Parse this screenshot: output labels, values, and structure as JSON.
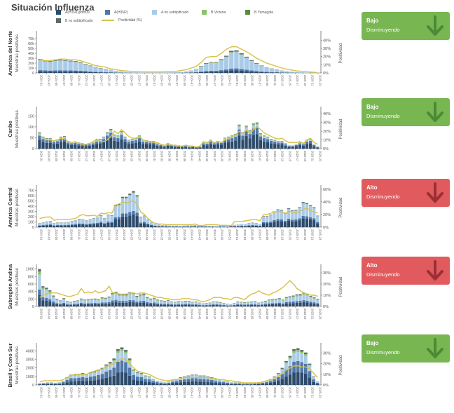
{
  "page": {
    "title": "Situación Influenza"
  },
  "legend": [
    {
      "label": "A(H1N1)pdm09",
      "color": "#2d4a6b",
      "type": "box"
    },
    {
      "label": "A(H3N2)",
      "color": "#4f78a8",
      "type": "box"
    },
    {
      "label": "A no subtipificado",
      "color": "#aacbe8",
      "type": "box"
    },
    {
      "label": "B Victoria",
      "color": "#8ec26a",
      "type": "box"
    },
    {
      "label": "B Yamagata",
      "color": "#5a8a3e",
      "type": "box"
    },
    {
      "label": "B no subtipificado",
      "color": "#5b6b68",
      "type": "box"
    },
    {
      "label": "Positividad (%)",
      "color": "#d8c04a",
      "type": "line"
    }
  ],
  "status_cards": [
    {
      "level": "Bajo",
      "trend": "Disminuyendo",
      "color": "#78b651",
      "arrow_color": "#4d8a36"
    },
    {
      "level": "Bajo",
      "trend": "Disminuyendo",
      "color": "#78b651",
      "arrow_color": "#4d8a36"
    },
    {
      "level": "Alto",
      "trend": "Disminuyendo",
      "color": "#e05a5e",
      "arrow_color": "#9b3034"
    },
    {
      "level": "Alto",
      "trend": "Disminuyendo",
      "color": "#e05a5e",
      "arrow_color": "#9b3034"
    },
    {
      "level": "Bajo",
      "trend": "Disminuyendo",
      "color": "#78b651",
      "arrow_color": "#4d8a36"
    }
  ],
  "chart_data": [
    {
      "type": "bar",
      "region": "América del Norte",
      "ylabel": "Muestras positivas",
      "y2label": "Positividad",
      "yticks": [
        "0",
        "10k",
        "20k",
        "30k",
        "40k",
        "50k",
        "60k",
        "70k"
      ],
      "ylim": [
        0,
        80000
      ],
      "y2ticks": [
        "0%",
        "10%",
        "20%",
        "30%",
        "40%"
      ],
      "y2lim": [
        0,
        48
      ],
      "xticks": [
        "2024-01",
        "2024-03",
        "2024-05",
        "2024-07",
        "2024-09",
        "2024-11",
        "2024-13",
        "2024-15",
        "2024-17",
        "2024-19",
        "2024-21",
        "2024-23",
        "2024-25",
        "2024-27",
        "2024-29",
        "2024-31",
        "2024-33",
        "2024-35",
        "2024-37",
        "2024-39",
        "2024-41",
        "2024-43",
        "2024-45",
        "2024-47",
        "2024-49",
        "2024-51",
        "2025-01",
        "2025-03",
        "2025-05",
        "2025-07",
        "2025-09",
        "2025-11",
        "2025-13",
        "2025-15",
        "2025-17",
        "2025-19",
        "2025-21",
        "2025-23"
      ],
      "totals": [
        28000,
        25000,
        24000,
        26000,
        27000,
        26000,
        25000,
        24000,
        22000,
        18000,
        15000,
        12000,
        10000,
        8000,
        6000,
        4000,
        3000,
        2000,
        1500,
        1200,
        1000,
        900,
        800,
        800,
        900,
        1000,
        1200,
        1500,
        2000,
        3000,
        5000,
        8000,
        14000,
        20000,
        22000,
        22000,
        28000,
        35000,
        45000,
        46000,
        40000,
        33000,
        26000,
        20000,
        15000,
        11000,
        9000,
        7000,
        5000,
        3500,
        2500,
        1800,
        1200,
        900,
        600,
        400
      ],
      "positivity": [
        16,
        15,
        15,
        16,
        17,
        17,
        16,
        16,
        15,
        13,
        11,
        9,
        8,
        7,
        5,
        4,
        3,
        2.5,
        2,
        1.8,
        1.5,
        1.3,
        1.2,
        1.2,
        1.3,
        1.5,
        1.8,
        2,
        3,
        4,
        6,
        8,
        13,
        19,
        20,
        20,
        24,
        29,
        32,
        32,
        29,
        26,
        22,
        18,
        15,
        12,
        10,
        8,
        6,
        4.5,
        3.5,
        2.5,
        2,
        1.5,
        1,
        0.5
      ],
      "ymax_bar": 80000,
      "ymax_pos": 48
    },
    {
      "type": "bar",
      "region": "Caribe",
      "ylabel": "Muestras positivas",
      "y2label": "Positividad",
      "yticks": [
        "0",
        "50",
        "100",
        "150"
      ],
      "ylim": [
        0,
        180
      ],
      "y2ticks": [
        "0%",
        "10%",
        "20%",
        "30%",
        "40%"
      ],
      "y2lim": [
        0,
        45
      ],
      "xticks": [
        "2024-01",
        "2024-03",
        "2024-05",
        "2024-07",
        "2024-09",
        "2024-11",
        "2024-13",
        "2024-15",
        "2024-17",
        "2024-19",
        "2024-21",
        "2024-23",
        "2024-25",
        "2024-27",
        "2024-29",
        "2024-31",
        "2024-33",
        "2024-35",
        "2024-37",
        "2024-39",
        "2024-41",
        "2024-43",
        "2024-45",
        "2024-47",
        "2024-49",
        "2024-51",
        "2025-01",
        "2025-03",
        "2025-05",
        "2025-07",
        "2025-09",
        "2025-11",
        "2025-13",
        "2025-15",
        "2025-17",
        "2025-19",
        "2025-21",
        "2025-23"
      ],
      "totals": [
        75,
        55,
        48,
        48,
        38,
        42,
        55,
        58,
        35,
        30,
        32,
        28,
        25,
        22,
        25,
        30,
        40,
        45,
        55,
        75,
        90,
        65,
        60,
        80,
        55,
        40,
        45,
        48,
        60,
        40,
        38,
        35,
        35,
        25,
        20,
        15,
        25,
        20,
        18,
        15,
        12,
        15,
        10,
        12,
        8,
        10,
        30,
        28,
        40,
        30,
        35,
        32,
        50,
        55,
        60,
        68,
        110,
        75,
        105,
        85,
        115,
        120,
        70,
        60,
        55,
        45,
        40,
        35,
        35,
        25,
        15,
        15,
        20,
        30,
        25,
        40,
        45,
        20,
        10
      ],
      "positivity": [
        16,
        12,
        10,
        10,
        9,
        10,
        12,
        11,
        8,
        7,
        8,
        6,
        5,
        5,
        6,
        8,
        11,
        8,
        8,
        10,
        14,
        20,
        17,
        22,
        18,
        14,
        12,
        12,
        14,
        10,
        9,
        8,
        7,
        7,
        5,
        4,
        5,
        4,
        3,
        3,
        3,
        4,
        3,
        3,
        2,
        3,
        8,
        7,
        9,
        7,
        8,
        7,
        10,
        11,
        13,
        16,
        20,
        18,
        21,
        17,
        22,
        25,
        22,
        18,
        16,
        14,
        12,
        11,
        12,
        9,
        7,
        7,
        7,
        8,
        6,
        10,
        12,
        7,
        5
      ],
      "ymax_bar": 180,
      "ymax_pos": 45
    },
    {
      "type": "bar",
      "region": "América Central",
      "ylabel": "Muestras positivas",
      "y2label": "Positividad",
      "yticks": [
        "0",
        "100",
        "200",
        "300",
        "400",
        "500",
        "600",
        "700"
      ],
      "ylim": [
        0,
        750
      ],
      "y2ticks": [
        "0%",
        "20%",
        "40%",
        "60%"
      ],
      "y2lim": [
        0,
        62
      ],
      "xticks": [
        "2024-01",
        "2024-03",
        "2024-05",
        "2024-07",
        "2024-09",
        "2024-11",
        "2024-13",
        "2024-15",
        "2024-17",
        "2024-19",
        "2024-21",
        "2024-23",
        "2024-25",
        "2024-27",
        "2024-29",
        "2024-31",
        "2024-33",
        "2024-35",
        "2024-37",
        "2024-39",
        "2024-41",
        "2024-43",
        "2024-45",
        "2024-47",
        "2024-49",
        "2024-51",
        "2025-01",
        "2025-03",
        "2025-05",
        "2025-07",
        "2025-09",
        "2025-11",
        "2025-13",
        "2025-15",
        "2025-17",
        "2025-19",
        "2025-21",
        "2025-23"
      ],
      "totals": [
        80,
        90,
        110,
        120,
        80,
        90,
        90,
        90,
        100,
        120,
        130,
        160,
        150,
        130,
        150,
        170,
        180,
        230,
        170,
        240,
        230,
        420,
        440,
        580,
        580,
        640,
        690,
        610,
        200,
        220,
        150,
        100,
        60,
        50,
        40,
        40,
        30,
        30,
        30,
        25,
        30,
        35,
        35,
        40,
        30,
        35,
        30,
        25,
        25,
        20,
        30,
        25,
        20,
        40,
        45,
        50,
        60,
        55,
        80,
        90,
        80,
        60,
        210,
        210,
        240,
        300,
        340,
        330,
        270,
        360,
        320,
        330,
        380,
        480,
        460,
        420,
        380,
        220
      ],
      "positivity": [
        14,
        15,
        16,
        16,
        11,
        12,
        12,
        12,
        12,
        13,
        14,
        18,
        20,
        18,
        18,
        19,
        17,
        22,
        21,
        23,
        22,
        35,
        37,
        40,
        38,
        40,
        42,
        36,
        24,
        20,
        14,
        9,
        6,
        5,
        5,
        4,
        4,
        4,
        4,
        4,
        4,
        4,
        4,
        5,
        3,
        2,
        4,
        4,
        4,
        4,
        3,
        3,
        3,
        2,
        9,
        9,
        9,
        10,
        11,
        12,
        12,
        10,
        20,
        20,
        22,
        24,
        25,
        24,
        22,
        25,
        24,
        22,
        25,
        28,
        30,
        26,
        24,
        22
      ],
      "ymax_bar": 750,
      "ymax_pos": 62
    },
    {
      "type": "bar",
      "region": "Subregión Andina",
      "ylabel": "Muestras positivas",
      "y2label": "Positividad",
      "yticks": [
        "0",
        "200",
        "400",
        "600",
        "800",
        "1000"
      ],
      "ylim": [
        0,
        1050
      ],
      "y2ticks": [
        "0%",
        "10%",
        "20%",
        "30%"
      ],
      "y2lim": [
        0,
        35
      ],
      "xticks": [
        "2024-01",
        "2024-03",
        "2024-05",
        "2024-07",
        "2024-09",
        "2024-11",
        "2024-13",
        "2024-15",
        "2024-17",
        "2024-19",
        "2024-21",
        "2024-23",
        "2024-25",
        "2024-27",
        "2024-29",
        "2024-31",
        "2024-33",
        "2024-35",
        "2024-37",
        "2024-39",
        "2024-41",
        "2024-43",
        "2024-45",
        "2024-47",
        "2024-49",
        "2024-51",
        "2025-01",
        "2025-03",
        "2025-05",
        "2025-07",
        "2025-09",
        "2025-11",
        "2025-13",
        "2025-15",
        "2025-17",
        "2025-19",
        "2025-21",
        "2025-23"
      ],
      "totals": [
        1000,
        540,
        500,
        430,
        290,
        200,
        160,
        220,
        140,
        120,
        150,
        160,
        210,
        180,
        190,
        200,
        210,
        190,
        240,
        230,
        260,
        360,
        390,
        330,
        330,
        320,
        380,
        370,
        280,
        320,
        340,
        250,
        210,
        230,
        180,
        160,
        150,
        170,
        130,
        120,
        140,
        130,
        150,
        150,
        120,
        130,
        100,
        80,
        90,
        100,
        130,
        130,
        110,
        90,
        70,
        60,
        90,
        130,
        120,
        110,
        120,
        130,
        140,
        100,
        120,
        150,
        180,
        190,
        200,
        220,
        180,
        250,
        270,
        290,
        320,
        330,
        370,
        340,
        280,
        240,
        200
      ],
      "positivity": [
        8,
        10,
        11,
        12,
        12,
        12,
        11,
        10,
        9,
        9,
        10,
        11,
        16,
        12,
        13,
        12,
        14,
        12,
        13,
        14,
        18,
        12,
        12,
        11,
        11,
        11,
        12,
        12,
        11,
        12,
        12,
        11,
        10,
        9,
        8,
        8,
        7,
        7,
        6,
        6,
        6,
        7,
        7,
        7,
        6,
        6,
        5,
        4,
        5,
        6,
        8,
        8,
        8,
        7,
        7,
        6,
        8,
        8,
        7,
        6,
        9,
        11,
        12,
        14,
        12,
        11,
        10,
        12,
        13,
        15,
        17,
        20,
        23,
        20,
        16,
        14,
        12,
        11,
        10,
        10,
        9
      ],
      "ymax_bar": 1050,
      "ymax_pos": 35
    },
    {
      "type": "bar",
      "region": "Brasil y Cono Sur",
      "ylabel": "Muestras positivas",
      "y2label": "Positividad",
      "yticks": [
        "0",
        "1000",
        "2000",
        "3000",
        "4000"
      ],
      "ylim": [
        0,
        4600
      ],
      "y2ticks": [
        "0%",
        "10%",
        "20%",
        "30%"
      ],
      "y2lim": [
        0,
        37
      ],
      "xticks": [
        "2024-01",
        "2024-03",
        "2024-05",
        "2024-07",
        "2024-09",
        "2024-11",
        "2024-13",
        "2024-15",
        "2024-17",
        "2024-19",
        "2024-21",
        "2024-23",
        "2024-25",
        "2024-27",
        "2024-29",
        "2024-31",
        "2024-33",
        "2024-35",
        "2024-37",
        "2024-39",
        "2024-41",
        "2024-43",
        "2024-45",
        "2024-47",
        "2024-49",
        "2024-51",
        "2025-01",
        "2025-03",
        "2025-05",
        "2025-07",
        "2025-09",
        "2025-11",
        "2025-13",
        "2025-15",
        "2025-17",
        "2025-19",
        "2025-21",
        "2025-23"
      ],
      "totals": [
        200,
        250,
        300,
        300,
        250,
        300,
        500,
        900,
        1200,
        1200,
        1300,
        1400,
        1300,
        1500,
        1600,
        1800,
        2000,
        2400,
        2700,
        3100,
        4200,
        4400,
        4100,
        3100,
        1800,
        1500,
        1400,
        1100,
        1000,
        700,
        500,
        400,
        300,
        400,
        600,
        700,
        900,
        1000,
        1100,
        1200,
        1200,
        1100,
        1100,
        1000,
        900,
        700,
        600,
        500,
        400,
        300,
        300,
        300,
        200,
        200,
        200,
        250,
        300,
        400,
        500,
        700,
        1000,
        1400,
        2000,
        2800,
        3400,
        4200,
        4300,
        4100,
        3800,
        2500,
        1000,
        400
      ],
      "positivity": [
        3,
        4,
        4,
        4,
        4,
        4,
        5,
        7,
        9,
        10,
        10,
        10,
        10,
        12,
        13,
        14,
        15,
        17,
        19,
        20,
        23,
        25,
        24,
        20,
        16,
        13,
        12,
        11,
        10,
        8,
        6,
        5,
        4,
        4,
        5,
        5,
        6,
        7,
        7,
        7,
        7,
        7,
        7,
        7,
        6,
        6,
        5,
        5,
        4,
        4,
        3,
        3,
        2,
        2,
        2,
        2,
        2,
        3,
        4,
        5,
        6,
        8,
        11,
        14,
        16,
        18,
        18,
        17,
        17,
        15,
        11,
        7
      ],
      "ymax_bar": 4600,
      "ymax_pos": 37
    }
  ]
}
